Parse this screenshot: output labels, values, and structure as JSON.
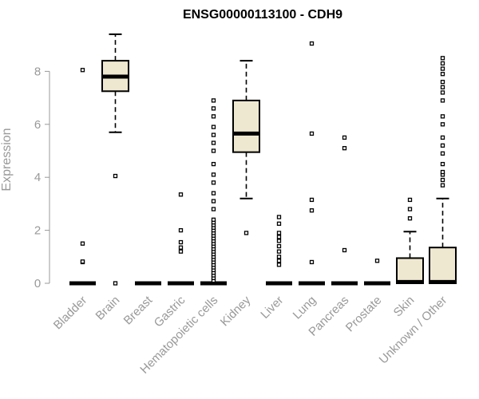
{
  "chart_data": {
    "type": "box",
    "title": "ENSG00000113100 - CDH9",
    "xlabel": "",
    "ylabel": "Expression",
    "ylim": [
      0,
      9.5
    ],
    "yticks": [
      0,
      2,
      4,
      6,
      8
    ],
    "categories": [
      "Bladder",
      "Brain",
      "Breast",
      "Gastric",
      "Hematopoietic cells",
      "Kidney",
      "Liver",
      "Lung",
      "Pancreas",
      "Prostate",
      "Skin",
      "Unknown / Other"
    ],
    "boxes": [
      {
        "category": "Bladder",
        "q1": 0,
        "median": 0,
        "q3": 0,
        "whisker_low": 0,
        "whisker_high": 0,
        "outliers": [
          0.8,
          0.82,
          1.5,
          8.05
        ]
      },
      {
        "category": "Brain",
        "q1": 7.25,
        "median": 7.8,
        "q3": 8.4,
        "whisker_low": 5.7,
        "whisker_high": 9.4,
        "outliers": [
          4.05,
          0.0
        ]
      },
      {
        "category": "Breast",
        "q1": 0,
        "median": 0,
        "q3": 0,
        "whisker_low": 0,
        "whisker_high": 0,
        "outliers": []
      },
      {
        "category": "Gastric",
        "q1": 0,
        "median": 0,
        "q3": 0,
        "whisker_low": 0,
        "whisker_high": 0,
        "outliers": [
          1.2,
          1.35,
          1.55,
          2.0,
          3.35
        ]
      },
      {
        "category": "Hematopoietic cells",
        "q1": 0,
        "median": 0,
        "q3": 0,
        "whisker_low": 0,
        "whisker_high": 0,
        "outliers": [
          0.1,
          0.2,
          0.3,
          0.4,
          0.5,
          0.6,
          0.7,
          0.8,
          0.9,
          1.0,
          1.1,
          1.2,
          1.3,
          1.4,
          1.5,
          1.6,
          1.7,
          1.8,
          1.9,
          2.0,
          2.1,
          2.2,
          2.3,
          2.4,
          2.8,
          3.1,
          3.4,
          3.8,
          4.1,
          4.5,
          5.0,
          5.3,
          5.6,
          5.9,
          6.3,
          6.6,
          6.9
        ]
      },
      {
        "category": "Kidney",
        "q1": 4.95,
        "median": 5.65,
        "q3": 6.9,
        "whisker_low": 3.2,
        "whisker_high": 8.4,
        "outliers": [
          1.9
        ]
      },
      {
        "category": "Liver",
        "q1": 0,
        "median": 0,
        "q3": 0,
        "whisker_low": 0,
        "whisker_high": 0,
        "outliers": [
          0.7,
          0.85,
          1.0,
          1.2,
          1.4,
          1.6,
          1.75,
          1.9,
          2.25,
          2.5
        ]
      },
      {
        "category": "Lung",
        "q1": 0,
        "median": 0,
        "q3": 0,
        "whisker_low": 0,
        "whisker_high": 0,
        "outliers": [
          0.8,
          2.75,
          3.15,
          5.65,
          9.05
        ]
      },
      {
        "category": "Pancreas",
        "q1": 0,
        "median": 0,
        "q3": 0,
        "whisker_low": 0,
        "whisker_high": 0,
        "outliers": [
          1.25,
          5.1,
          5.5
        ]
      },
      {
        "category": "Prostate",
        "q1": 0,
        "median": 0,
        "q3": 0,
        "whisker_low": 0,
        "whisker_high": 0,
        "outliers": [
          0.85
        ]
      },
      {
        "category": "Skin",
        "q1": 0,
        "median": 0.05,
        "q3": 0.95,
        "whisker_low": 0,
        "whisker_high": 1.95,
        "outliers": [
          2.45,
          2.8,
          3.15
        ]
      },
      {
        "category": "Unknown / Other",
        "q1": 0,
        "median": 0.05,
        "q3": 1.35,
        "whisker_low": 0,
        "whisker_high": 3.2,
        "outliers": [
          3.7,
          3.9,
          4.1,
          4.2,
          4.5,
          4.9,
          5.2,
          5.5,
          6.0,
          6.3,
          6.9,
          7.2,
          7.4,
          7.6,
          7.9,
          8.1,
          8.3,
          8.5
        ]
      }
    ]
  }
}
